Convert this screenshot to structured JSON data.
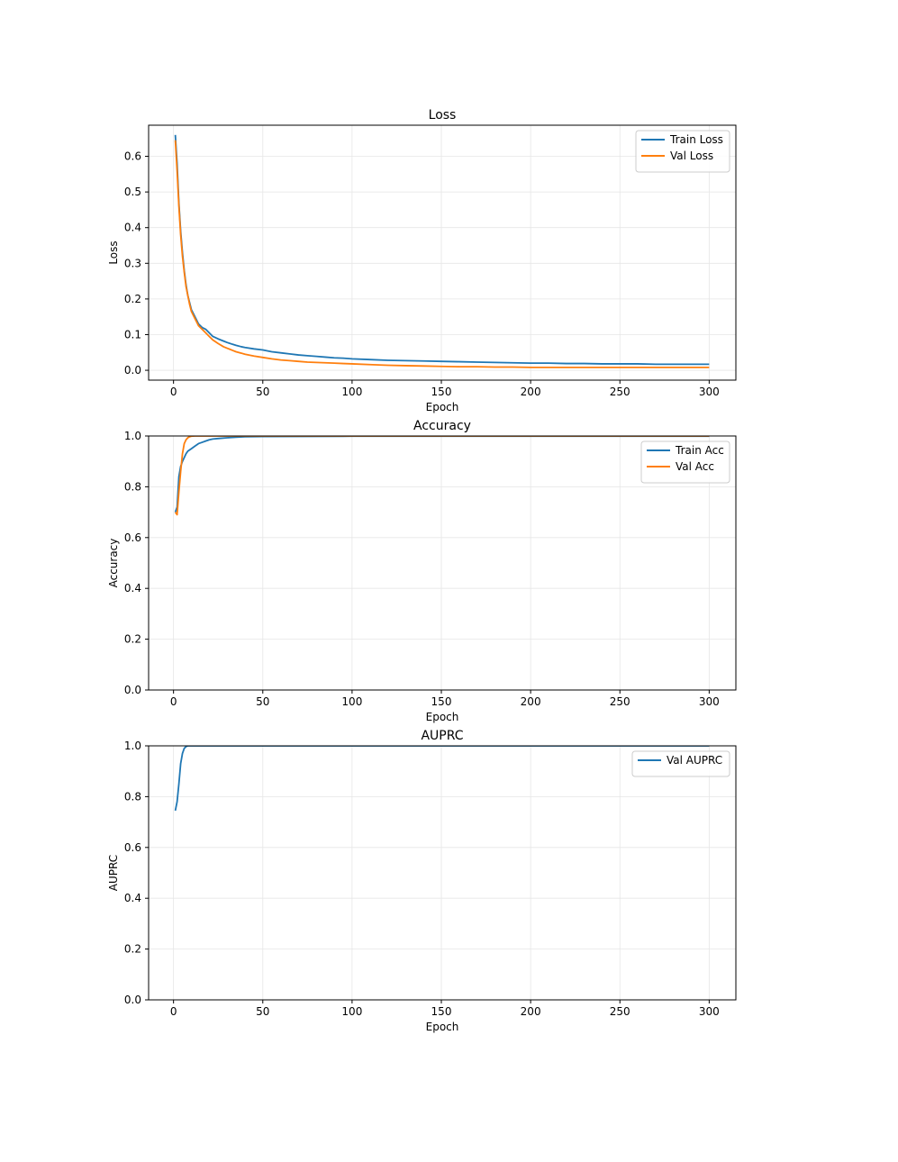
{
  "colors": {
    "series_blue": "#1f77b4",
    "series_orange": "#ff7f0e",
    "grid": "#e6e6e6",
    "axes": "#000000",
    "background": "#ffffff"
  },
  "chart_data": [
    {
      "type": "line",
      "title": "Loss",
      "xlabel": "Epoch",
      "ylabel": "Loss",
      "xlim": [
        -13.95,
        314.95
      ],
      "ylim": [
        -0.0276,
        0.6872
      ],
      "xticks": [
        0,
        50,
        100,
        150,
        200,
        250,
        300
      ],
      "yticks": [
        0.0,
        0.1,
        0.2,
        0.3,
        0.4,
        0.5,
        0.6
      ],
      "ytick_labels": [
        "0.0",
        "0.1",
        "0.2",
        "0.3",
        "0.4",
        "0.5",
        "0.6"
      ],
      "xtick_labels": [
        "0",
        "50",
        "100",
        "150",
        "200",
        "250",
        "300"
      ],
      "grid": true,
      "legend_position": "top-right",
      "series": [
        {
          "name": "Train Loss",
          "color": "#1f77b4",
          "x": [
            1,
            2,
            3,
            4,
            5,
            6,
            7,
            8,
            9,
            10,
            12,
            14,
            16,
            18,
            20,
            22,
            25,
            28,
            30,
            33,
            35,
            38,
            40,
            45,
            50,
            55,
            60,
            65,
            70,
            75,
            80,
            85,
            90,
            95,
            100,
            110,
            120,
            130,
            140,
            150,
            160,
            170,
            180,
            190,
            200,
            210,
            220,
            230,
            240,
            250,
            260,
            270,
            280,
            290,
            300
          ],
          "y": [
            0.66,
            0.58,
            0.47,
            0.39,
            0.33,
            0.28,
            0.24,
            0.21,
            0.19,
            0.17,
            0.15,
            0.13,
            0.12,
            0.115,
            0.105,
            0.095,
            0.088,
            0.082,
            0.078,
            0.073,
            0.07,
            0.066,
            0.064,
            0.06,
            0.057,
            0.052,
            0.049,
            0.046,
            0.043,
            0.041,
            0.039,
            0.037,
            0.035,
            0.034,
            0.032,
            0.03,
            0.028,
            0.027,
            0.026,
            0.025,
            0.024,
            0.023,
            0.022,
            0.021,
            0.02,
            0.02,
            0.019,
            0.019,
            0.018,
            0.018,
            0.018,
            0.017,
            0.017,
            0.017,
            0.017
          ]
        },
        {
          "name": "Val Loss",
          "color": "#ff7f0e",
          "x": [
            1,
            2,
            3,
            4,
            5,
            6,
            7,
            8,
            9,
            10,
            12,
            14,
            16,
            18,
            20,
            22,
            25,
            28,
            30,
            33,
            35,
            38,
            40,
            45,
            50,
            55,
            60,
            65,
            70,
            75,
            80,
            85,
            90,
            95,
            100,
            110,
            120,
            130,
            140,
            150,
            160,
            170,
            180,
            190,
            200,
            210,
            220,
            230,
            240,
            250,
            260,
            270,
            280,
            290,
            300
          ],
          "y": [
            0.645,
            0.56,
            0.46,
            0.38,
            0.32,
            0.275,
            0.235,
            0.21,
            0.185,
            0.165,
            0.145,
            0.125,
            0.115,
            0.105,
            0.095,
            0.085,
            0.075,
            0.066,
            0.062,
            0.056,
            0.052,
            0.048,
            0.045,
            0.04,
            0.036,
            0.032,
            0.029,
            0.027,
            0.025,
            0.023,
            0.022,
            0.021,
            0.02,
            0.019,
            0.018,
            0.016,
            0.014,
            0.013,
            0.012,
            0.011,
            0.01,
            0.01,
            0.009,
            0.009,
            0.008,
            0.008,
            0.008,
            0.008,
            0.008,
            0.008,
            0.008,
            0.008,
            0.008,
            0.008,
            0.008
          ]
        }
      ]
    },
    {
      "type": "line",
      "title": "Accuracy",
      "xlabel": "Epoch",
      "ylabel": "Accuracy",
      "xlim": [
        -13.95,
        314.95
      ],
      "ylim": [
        0.0,
        1.0
      ],
      "xticks": [
        0,
        50,
        100,
        150,
        200,
        250,
        300
      ],
      "yticks": [
        0.0,
        0.2,
        0.4,
        0.6,
        0.8,
        1.0
      ],
      "ytick_labels": [
        "0.0",
        "0.2",
        "0.4",
        "0.6",
        "0.8",
        "1.0"
      ],
      "xtick_labels": [
        "0",
        "50",
        "100",
        "150",
        "200",
        "250",
        "300"
      ],
      "grid": true,
      "legend_position": "top-right",
      "series": [
        {
          "name": "Train Acc",
          "color": "#1f77b4",
          "x": [
            1,
            2,
            3,
            4,
            5,
            6,
            7,
            8,
            10,
            12,
            14,
            16,
            18,
            20,
            22,
            25,
            30,
            35,
            40,
            50,
            100,
            150,
            200,
            250,
            300
          ],
          "y": [
            0.7,
            0.72,
            0.84,
            0.88,
            0.9,
            0.915,
            0.93,
            0.94,
            0.95,
            0.96,
            0.97,
            0.975,
            0.98,
            0.985,
            0.988,
            0.99,
            0.993,
            0.995,
            0.997,
            0.998,
            0.999,
            0.999,
            0.999,
            0.999,
            0.999
          ]
        },
        {
          "name": "Val Acc",
          "color": "#ff7f0e",
          "x": [
            1,
            2,
            3,
            4,
            5,
            6,
            7,
            8,
            9,
            10,
            12,
            15,
            20,
            50,
            100,
            150,
            200,
            250,
            300
          ],
          "y": [
            0.7,
            0.69,
            0.78,
            0.86,
            0.93,
            0.97,
            0.985,
            0.993,
            0.997,
            0.999,
            1.0,
            1.0,
            1.0,
            1.0,
            1.0,
            1.0,
            1.0,
            1.0,
            1.0
          ]
        }
      ]
    },
    {
      "type": "line",
      "title": "AUPRC",
      "xlabel": "Epoch",
      "ylabel": "AUPRC",
      "xlim": [
        -13.95,
        314.95
      ],
      "ylim": [
        0.0,
        1.0
      ],
      "xticks": [
        0,
        50,
        100,
        150,
        200,
        250,
        300
      ],
      "yticks": [
        0.0,
        0.2,
        0.4,
        0.6,
        0.8,
        1.0
      ],
      "ytick_labels": [
        "0.0",
        "0.2",
        "0.4",
        "0.6",
        "0.8",
        "1.0"
      ],
      "xtick_labels": [
        "0",
        "50",
        "100",
        "150",
        "200",
        "250",
        "300"
      ],
      "grid": true,
      "legend_position": "top-right",
      "series": [
        {
          "name": "Val AUPRC",
          "color": "#1f77b4",
          "x": [
            1,
            2,
            3,
            4,
            5,
            6,
            7,
            8,
            10,
            15,
            20,
            50,
            100,
            150,
            200,
            250,
            300
          ],
          "y": [
            0.745,
            0.78,
            0.85,
            0.93,
            0.97,
            0.99,
            0.997,
            1.0,
            1.0,
            1.0,
            1.0,
            1.0,
            1.0,
            1.0,
            1.0,
            1.0,
            1.0
          ]
        }
      ]
    }
  ]
}
